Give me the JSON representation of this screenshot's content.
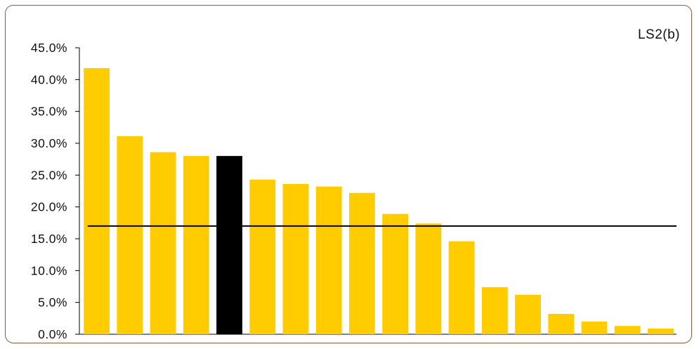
{
  "chart_data": {
    "type": "bar",
    "title": "LS2(b)",
    "xlabel": "",
    "ylabel": "",
    "ylim": [
      0,
      45
    ],
    "y_tick_labels": [
      "0.0%",
      "5.0%",
      "10.0%",
      "15.0%",
      "20.0%",
      "25.0%",
      "30.0%",
      "35.0%",
      "40.0%",
      "45.0%"
    ],
    "values": [
      41.8,
      31.1,
      28.6,
      28.0,
      28.0,
      24.3,
      23.6,
      23.2,
      22.2,
      18.9,
      17.4,
      14.6,
      7.4,
      6.2,
      3.2,
      2.0,
      1.3,
      0.9
    ],
    "highlight_index": 4,
    "reference_line": 17.0,
    "grid": false,
    "legend": "none",
    "colors": {
      "bar": "#ffcc00",
      "highlight": "#000000",
      "reference_line": "#000000",
      "axis": "#000000",
      "frame": "#8b5a3c"
    }
  }
}
